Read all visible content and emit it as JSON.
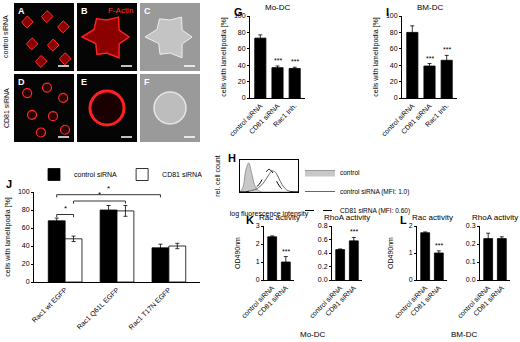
{
  "images": {
    "panels": [
      "A",
      "B",
      "C",
      "D",
      "E",
      "F"
    ],
    "row_labels": [
      "control siRNA",
      "CD81 siRNA"
    ],
    "stain": "F-Actin"
  },
  "chart_data": [
    {
      "panel": "G",
      "type": "bar",
      "title": "Mo-DC",
      "y_label": "cells with lamellipodia [%]",
      "categories": [
        "control siRNA",
        "CD81 siRNA",
        "Rac1 Inh."
      ],
      "values": [
        73,
        37,
        36
      ],
      "errors": [
        4,
        2,
        1.5
      ],
      "significance": [
        null,
        "***",
        "***"
      ],
      "color": "#000000",
      "ylim": [
        0,
        100
      ],
      "yticks": [
        0,
        20,
        40,
        60,
        80,
        100
      ]
    },
    {
      "panel": "I",
      "type": "bar",
      "title": "BM-DC",
      "y_label": "cells with lamellipodia [%]",
      "categories": [
        "control siRNA",
        "CD81 siRNA",
        "Rac1 Inh."
      ],
      "values": [
        80,
        39,
        46
      ],
      "errors": [
        8,
        3,
        6
      ],
      "significance": [
        null,
        "***",
        "***"
      ],
      "color": "#000000",
      "ylim": [
        0,
        100
      ],
      "yticks": [
        0,
        20,
        40,
        60,
        80,
        100
      ]
    },
    {
      "panel": "H",
      "type": "line",
      "x_label": "log fluorescence intensity",
      "y_label": "rel. cell count",
      "x": [
        0,
        5,
        10,
        15,
        20,
        25,
        30,
        35,
        40,
        45,
        50,
        55,
        60,
        65,
        70,
        75,
        80,
        85,
        90,
        95,
        100
      ],
      "series": [
        {
          "name": "control",
          "type": "area",
          "color": "#c8c8c8",
          "line_style": "solid",
          "values": [
            0,
            0.15,
            0.75,
            1.0,
            0.65,
            0.25,
            0.07,
            0.02,
            0,
            0,
            0,
            0,
            0,
            0,
            0,
            0,
            0,
            0,
            0,
            0,
            0
          ]
        },
        {
          "name": "control siRNA (MFI: 1.0)",
          "type": "line",
          "color": "#666666",
          "line_style": "solid",
          "values": [
            0,
            0,
            0,
            0.02,
            0.05,
            0.08,
            0.12,
            0.2,
            0.3,
            0.45,
            0.6,
            0.72,
            0.7,
            0.55,
            0.35,
            0.18,
            0.08,
            0.03,
            0.01,
            0,
            0
          ]
        },
        {
          "name": "CD81 siRNA (MFI: 0.60)",
          "type": "line",
          "color": "#000000",
          "line_style": "dashed",
          "values": [
            0,
            0,
            0,
            0.03,
            0.07,
            0.12,
            0.2,
            0.32,
            0.5,
            0.68,
            0.78,
            0.7,
            0.5,
            0.3,
            0.15,
            0.07,
            0.03,
            0.01,
            0,
            0,
            0
          ]
        }
      ],
      "xlim": [
        0,
        100
      ],
      "ylim": [
        0,
        1.1
      ],
      "tick_labels": false,
      "legend": "top right"
    },
    {
      "panel": "J",
      "type": "bar",
      "y_label": "cells with lamellipodia [%]",
      "categories": [
        "Rac1 wt EGFP",
        "Rac1 Q61L EGFP",
        "Rac1 T17N EGFP"
      ],
      "series": [
        {
          "name": "control siRNA",
          "color": "#000000",
          "values": [
            68,
            80,
            38
          ],
          "errors": [
            3,
            5,
            4
          ]
        },
        {
          "name": "CD81 siRNA",
          "color": "#ffffff",
          "values": [
            48,
            79,
            40
          ],
          "errors": [
            3,
            6,
            3
          ]
        }
      ],
      "comparisons": [
        {
          "from": [
            0,
            0
          ],
          "to": [
            0,
            1
          ],
          "y": 75,
          "label": "*"
        },
        {
          "from": [
            0,
            1
          ],
          "to": [
            1,
            1
          ],
          "y": 90,
          "label": "*"
        },
        {
          "from": [
            0,
            0
          ],
          "to": [
            2,
            0
          ],
          "y": 97,
          "label": "*"
        }
      ],
      "ylim": [
        0,
        100
      ],
      "yticks": [
        0,
        20,
        40,
        60,
        80,
        100
      ],
      "legend": "top left"
    },
    {
      "panel": "K",
      "caption": "Mo-DC",
      "charts": [
        {
          "type": "bar",
          "title": "Rac activity",
          "y_label": "OD490nm",
          "categories": [
            "control siRNA",
            "CD81 siRNA"
          ],
          "values": [
            2.4,
            1.0
          ],
          "errors": [
            0.05,
            0.3
          ],
          "significance": [
            null,
            "***"
          ],
          "color": "#000000",
          "ylim": [
            0,
            3
          ],
          "yticks": [
            0,
            1,
            2,
            3
          ]
        },
        {
          "type": "bar",
          "title": "RhoA activity",
          "categories": [
            "control siRNA",
            "CD81 siRNA"
          ],
          "values": [
            0.45,
            0.58
          ],
          "errors": [
            0.01,
            0.05
          ],
          "significance": [
            null,
            "***"
          ],
          "color": "#000000",
          "ylim": [
            0,
            0.8
          ],
          "yticks": [
            {
              "value": 0,
              "label": "0.0"
            },
            0.2,
            0.4,
            0.6,
            0.8
          ]
        }
      ]
    },
    {
      "panel": "L",
      "caption": "BM-DC",
      "charts": [
        {
          "type": "bar",
          "title": "Rac activity",
          "y_label": "OD490nm",
          "categories": [
            "control siRNA",
            "CD81 siRNA"
          ],
          "values": [
            1.75,
            1.0
          ],
          "errors": [
            0.03,
            0.08
          ],
          "significance": [
            null,
            "***"
          ],
          "color": "#000000",
          "ylim": [
            0,
            2
          ],
          "yticks": [
            0,
            1,
            2
          ]
        },
        {
          "type": "bar",
          "title": "RhoA activity",
          "categories": [
            "control siRNA",
            "CD81 siRNA"
          ],
          "values": [
            0.23,
            0.23
          ],
          "errors": [
            0.03,
            0.01
          ],
          "color": "#000000",
          "ylim": [
            0,
            0.3
          ],
          "yticks": [
            {
              "value": 0,
              "label": "0.0"
            },
            0.1,
            0.2,
            0.3
          ]
        }
      ]
    }
  ]
}
